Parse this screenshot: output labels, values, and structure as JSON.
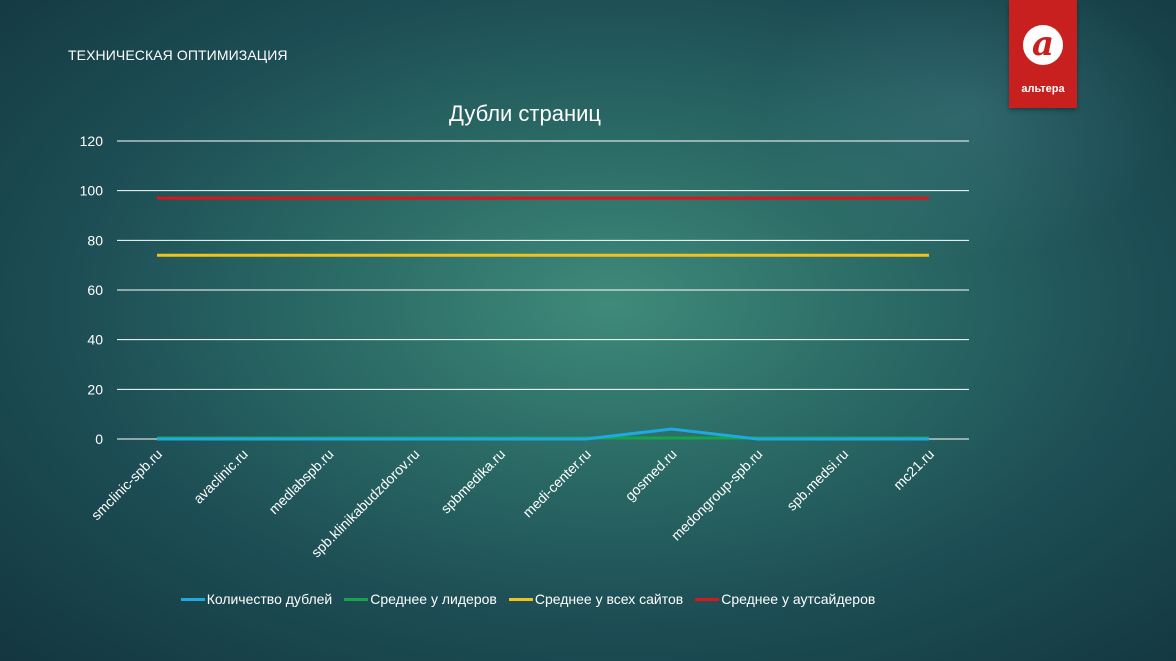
{
  "slide": {
    "title": "ТЕХНИЧЕСКАЯ ОПТИМИЗАЦИЯ",
    "logo_text": "альтера",
    "logo_mark": "a"
  },
  "colors": {
    "series1": "#1fa9e1",
    "series2": "#17a34a",
    "series3": "#f2c21b",
    "series4": "#d9161b",
    "logo_bg": "#c8201f"
  },
  "chart_data": {
    "type": "line",
    "title": "Дубли страниц",
    "xlabel": "",
    "ylabel": "",
    "ylim": [
      0,
      120
    ],
    "yticks": [
      0,
      20,
      40,
      60,
      80,
      100,
      120
    ],
    "grid": true,
    "legend_position": "bottom",
    "categories": [
      "smclinic-spb.ru",
      "avaclinic.ru",
      "medlabspb.ru",
      "spb.klinikabudzdorov.ru",
      "spbmedika.ru",
      "medi-center.ru",
      "gosmed.ru",
      "medongroup-spb.ru",
      "spb.medsi.ru",
      "mc21.ru"
    ],
    "series": [
      {
        "name": "Количество дублей",
        "color": "#1fa9e1",
        "values": [
          0,
          0,
          0,
          0,
          0,
          0,
          4,
          0,
          0,
          0
        ]
      },
      {
        "name": "Среднее у лидеров",
        "color": "#17a34a",
        "values": [
          0.4,
          0.4,
          0.4,
          0.4,
          0.4,
          0.4,
          0.4,
          0.4,
          0.4,
          0.4
        ]
      },
      {
        "name": "Среднее у всех сайтов",
        "color": "#f2c21b",
        "values": [
          74,
          74,
          74,
          74,
          74,
          74,
          74,
          74,
          74,
          74
        ]
      },
      {
        "name": "Среднее у аутсайдеров",
        "color": "#d9161b",
        "values": [
          97,
          97,
          97,
          97,
          97,
          97,
          97,
          97,
          97,
          97
        ]
      }
    ]
  }
}
